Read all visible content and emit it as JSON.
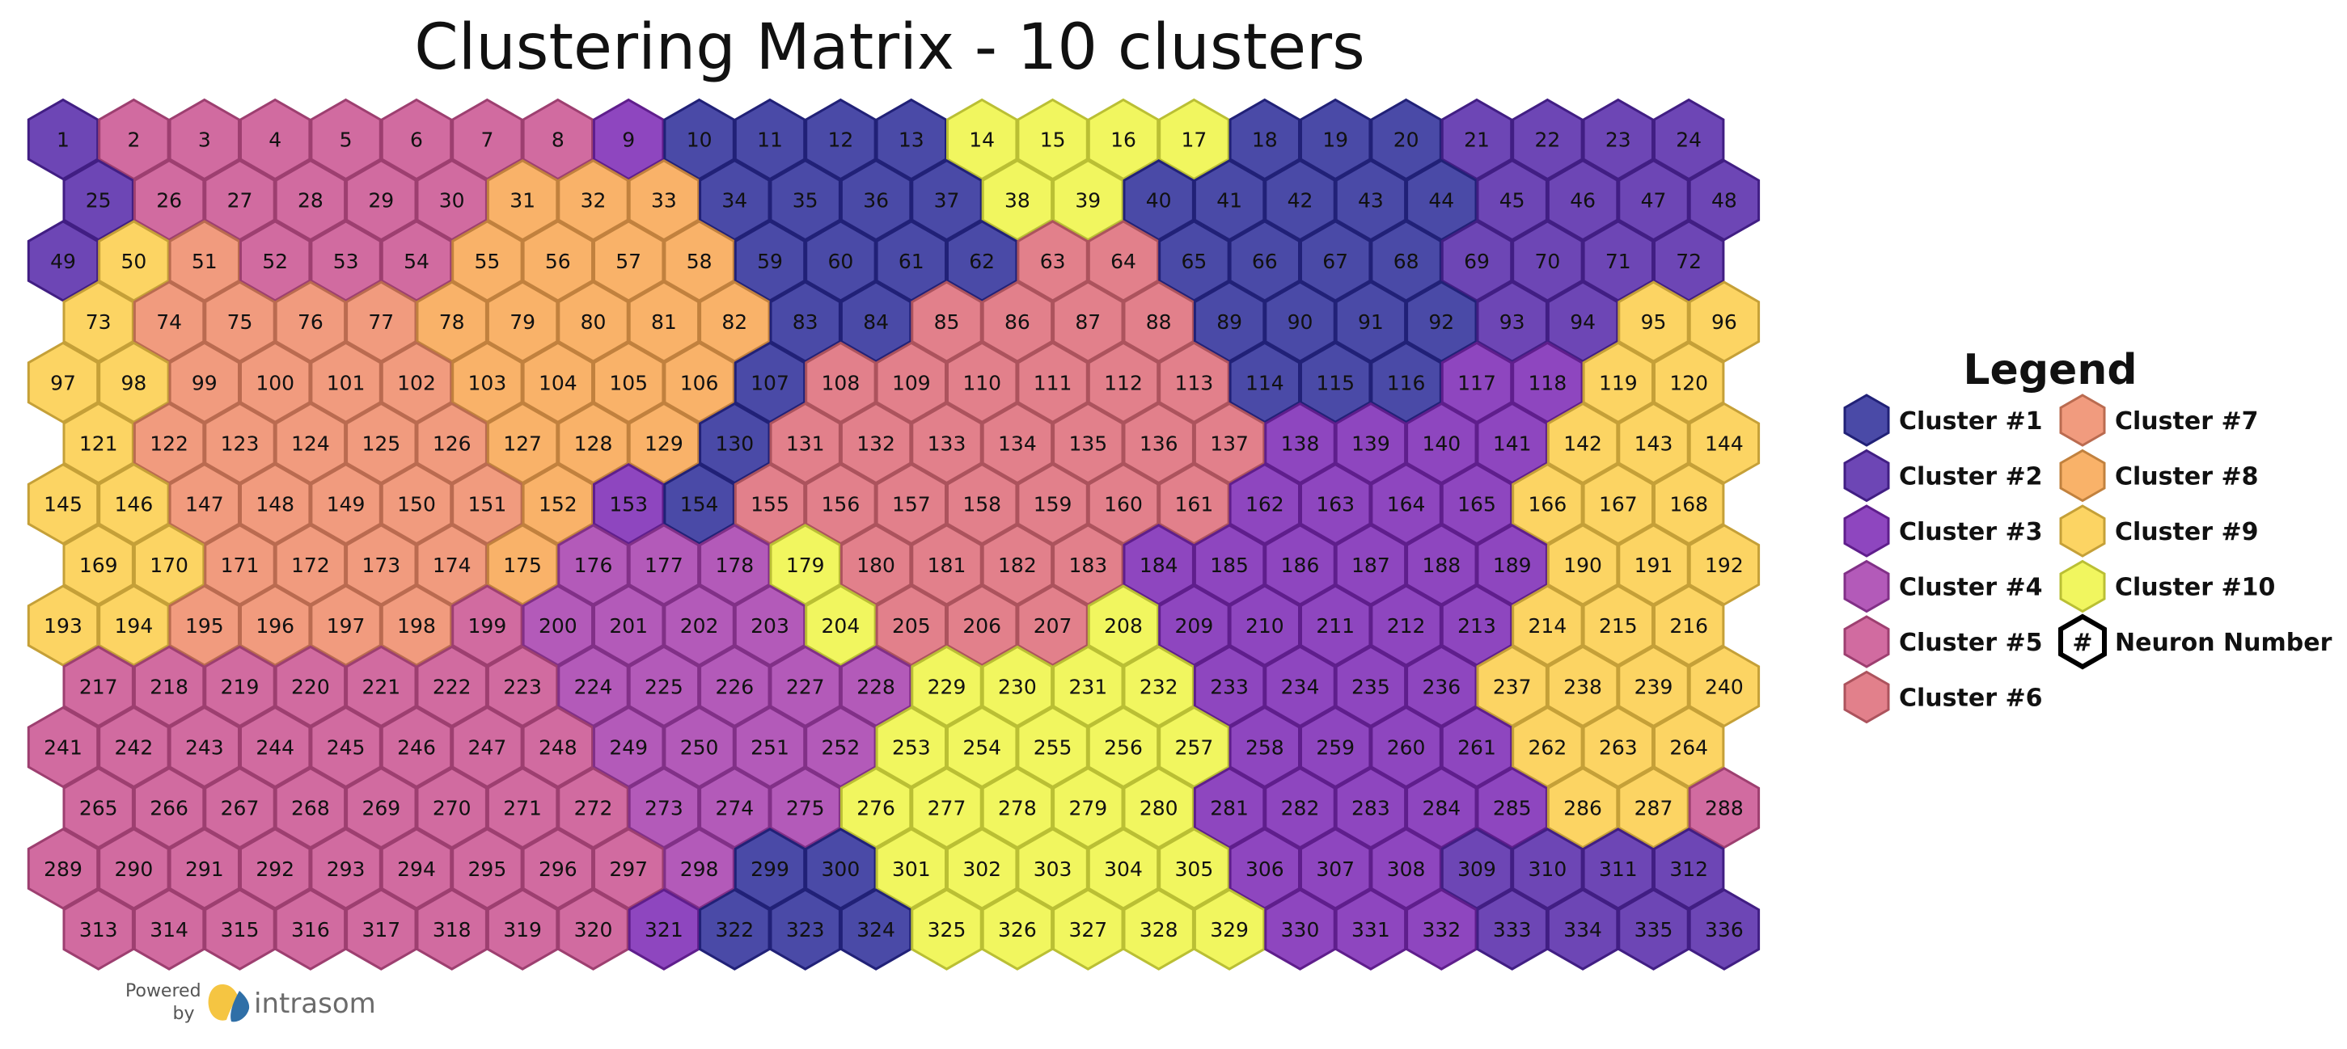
{
  "chart_data": {
    "type": "heatmap",
    "title": "Clustering Matrix - 10 clusters",
    "grid": {
      "rows": 14,
      "cols": 24
    },
    "colors": {
      "1": "#2a2a98",
      "2": "#5326a8",
      "3": "#7a26b4",
      "4": "#a63dad",
      "5": "#c9518f",
      "6": "#dd6a77",
      "7": "#ee8967",
      "8": "#f8a54f",
      "9": "#fccd48",
      "10": "#eff543",
      "neuron": "#ffffff"
    },
    "legend": {
      "title": "Legend",
      "items": [
        {
          "key": "1",
          "label": "Cluster #1"
        },
        {
          "key": "2",
          "label": "Cluster #2"
        },
        {
          "key": "3",
          "label": "Cluster #3"
        },
        {
          "key": "4",
          "label": "Cluster #4"
        },
        {
          "key": "5",
          "label": "Cluster #5"
        },
        {
          "key": "6",
          "label": "Cluster #6"
        },
        {
          "key": "7",
          "label": "Cluster #7"
        },
        {
          "key": "8",
          "label": "Cluster #8"
        },
        {
          "key": "9",
          "label": "Cluster #9"
        },
        {
          "key": "10",
          "label": "Cluster #10"
        },
        {
          "key": "neuron",
          "label": "Neuron Number",
          "symbol": "#"
        }
      ]
    },
    "clusters": [
      [
        2,
        5,
        5,
        5,
        5,
        5,
        5,
        5,
        3,
        1,
        1,
        1,
        1,
        10,
        10,
        10,
        10,
        1,
        1,
        1,
        2,
        2,
        2,
        2
      ],
      [
        2,
        5,
        5,
        5,
        5,
        5,
        8,
        8,
        8,
        1,
        1,
        1,
        1,
        10,
        10,
        1,
        1,
        1,
        1,
        1,
        2,
        2,
        2,
        2
      ],
      [
        2,
        9,
        7,
        5,
        5,
        5,
        8,
        8,
        8,
        8,
        1,
        1,
        1,
        1,
        6,
        6,
        1,
        1,
        1,
        1,
        2,
        2,
        2,
        2
      ],
      [
        9,
        7,
        7,
        7,
        7,
        8,
        8,
        8,
        8,
        8,
        1,
        1,
        6,
        6,
        6,
        6,
        1,
        1,
        1,
        1,
        2,
        2,
        9,
        9
      ],
      [
        9,
        9,
        7,
        7,
        7,
        7,
        8,
        8,
        8,
        8,
        1,
        6,
        6,
        6,
        6,
        6,
        6,
        1,
        1,
        1,
        3,
        3,
        9,
        9
      ],
      [
        9,
        7,
        7,
        7,
        7,
        7,
        8,
        8,
        8,
        1,
        6,
        6,
        6,
        6,
        6,
        6,
        6,
        3,
        3,
        3,
        3,
        9,
        9,
        9
      ],
      [
        9,
        9,
        7,
        7,
        7,
        7,
        7,
        8,
        3,
        1,
        6,
        6,
        6,
        6,
        6,
        6,
        6,
        3,
        3,
        3,
        3,
        9,
        9,
        9
      ],
      [
        9,
        9,
        7,
        7,
        7,
        7,
        8,
        4,
        4,
        4,
        10,
        6,
        6,
        6,
        6,
        3,
        3,
        3,
        3,
        3,
        3,
        9,
        9,
        9
      ],
      [
        9,
        9,
        7,
        7,
        7,
        7,
        5,
        4,
        4,
        4,
        4,
        10,
        6,
        6,
        6,
        10,
        3,
        3,
        3,
        3,
        3,
        9,
        9,
        9
      ],
      [
        5,
        5,
        5,
        5,
        5,
        5,
        5,
        4,
        4,
        4,
        4,
        4,
        10,
        10,
        10,
        10,
        3,
        3,
        3,
        3,
        9,
        9,
        9,
        9
      ],
      [
        5,
        5,
        5,
        5,
        5,
        5,
        5,
        5,
        4,
        4,
        4,
        4,
        10,
        10,
        10,
        10,
        10,
        3,
        3,
        3,
        3,
        9,
        9,
        9
      ],
      [
        5,
        5,
        5,
        5,
        5,
        5,
        5,
        5,
        4,
        4,
        4,
        10,
        10,
        10,
        10,
        10,
        3,
        3,
        3,
        3,
        3,
        9,
        9,
        5
      ],
      [
        5,
        5,
        5,
        5,
        5,
        5,
        5,
        5,
        5,
        4,
        1,
        1,
        10,
        10,
        10,
        10,
        10,
        3,
        3,
        3,
        2,
        2,
        2,
        2
      ],
      [
        5,
        5,
        5,
        5,
        5,
        5,
        5,
        5,
        3,
        1,
        1,
        1,
        10,
        10,
        10,
        10,
        10,
        3,
        3,
        3,
        2,
        2,
        2,
        2
      ]
    ]
  },
  "footer": {
    "powered_line1": "Powered",
    "powered_line2": "by",
    "brand": "intrasom"
  }
}
